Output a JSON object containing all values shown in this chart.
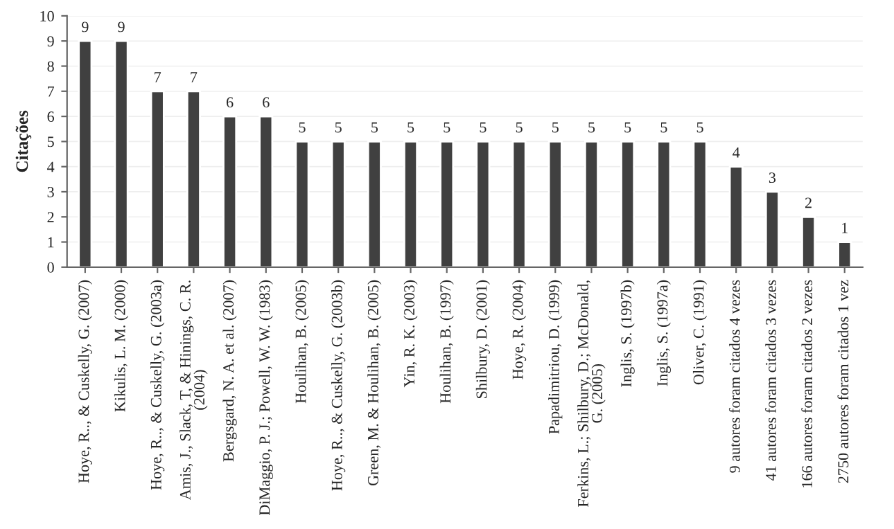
{
  "chart_data": {
    "type": "bar",
    "ylabel": "Citações",
    "categories": [
      "Hoye, R.., & Cuskelly, G. (2007)",
      "Kikulis, L. M. (2000)",
      "Hoye, R.., & Cuskelly, G. (2003a)",
      "Amis, J., Slack, T, & Hinings, C. R.\n(2004)",
      "Bergsgard, N. A. et al. (2007)",
      "DiMaggio, P. J.; Powell, W. W. (1983)",
      "Houlihan, B. (2005)",
      "Hoye, R.., & Cuskelly, G. (2003b)",
      "Green, M. & Houlihan, B. (2005)",
      "Yin, R. K. (2003)",
      "Houlihan, B. (1997)",
      "Shilbury, D. (2001)",
      "Hoye, R. (2004)",
      "Papadimitriou, D. (1999)",
      "Ferkins, L.; Shilbury, D.; McDonald,\nG. (2005)",
      "Inglis, S. (1997b)",
      "Inglis, S. (1997a)",
      "Oliver, C. (1991)",
      "9 autores foram citados 4 vezes",
      "41 autores foram citados 3 vezes",
      "166 autores foram citados 2 vezes",
      "2750 autores foram citados 1 vez"
    ],
    "values": [
      9,
      9,
      7,
      7,
      6,
      6,
      5,
      5,
      5,
      5,
      5,
      5,
      5,
      5,
      5,
      5,
      5,
      5,
      4,
      3,
      2,
      1
    ],
    "color": "#404040",
    "data_labels": true,
    "ylim": [
      0,
      10
    ],
    "yticks": [
      0,
      1,
      2,
      3,
      4,
      5,
      6,
      7,
      8,
      9,
      10
    ],
    "grid": "y"
  }
}
